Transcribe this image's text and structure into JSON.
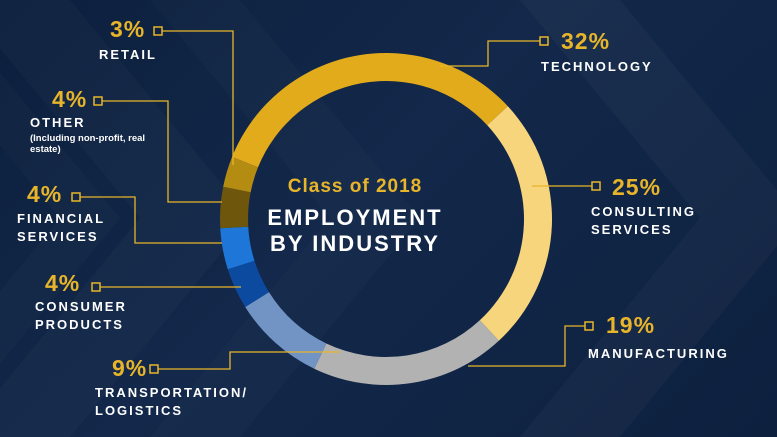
{
  "colors": {
    "background": "#0f2445",
    "accent": "#e8b52a",
    "text": "#ffffff",
    "leader": "#e8b52a"
  },
  "center": {
    "year_label": "Class of 2018",
    "title_line1": "EMPLOYMENT",
    "title_line2": "BY INDUSTRY"
  },
  "chart_data": {
    "type": "pie",
    "style": "donut",
    "title": "Class of 2018 EMPLOYMENT BY INDUSTRY",
    "slices": [
      {
        "key": "technology",
        "percent_label": "32%",
        "label_lines": [
          "TECHNOLOGY"
        ],
        "value": 32,
        "color": "#e2ab1b"
      },
      {
        "key": "consulting",
        "percent_label": "25%",
        "label_lines": [
          "CONSULTING",
          "SERVICES"
        ],
        "value": 25,
        "color": "#f7d57d"
      },
      {
        "key": "manufacturing",
        "percent_label": "19%",
        "label_lines": [
          "MANUFACTURING"
        ],
        "value": 19,
        "color": "#b2b2b2"
      },
      {
        "key": "transportation",
        "percent_label": "9%",
        "label_lines": [
          "TRANSPORTATION/",
          "LOGISTICS"
        ],
        "value": 9,
        "color": "#7194c5"
      },
      {
        "key": "consumer",
        "percent_label": "4%",
        "label_lines": [
          "CONSUMER",
          "PRODUCTS"
        ],
        "value": 4,
        "color": "#0c4aa0"
      },
      {
        "key": "financial",
        "percent_label": "4%",
        "label_lines": [
          "FINANCIAL",
          "SERVICES"
        ],
        "value": 4,
        "color": "#1e77d8"
      },
      {
        "key": "other",
        "percent_label": "4%",
        "label_lines": [
          "OTHER"
        ],
        "note": "(Including non-profit, real estate)",
        "value": 4,
        "color": "#6e560d"
      },
      {
        "key": "retail",
        "percent_label": "3%",
        "label_lines": [
          "RETAIL"
        ],
        "value": 3,
        "color": "#b58c12"
      }
    ]
  }
}
